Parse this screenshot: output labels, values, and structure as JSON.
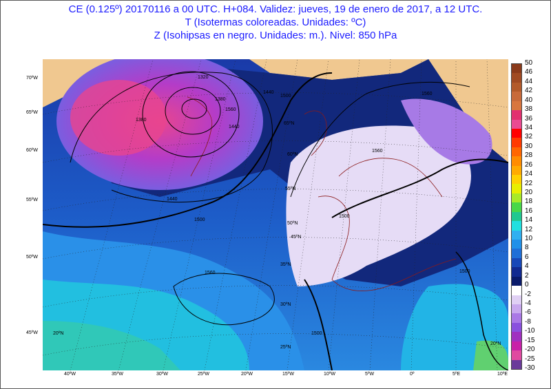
{
  "title": {
    "line1": "CE (0.125º) 20170116 a 00 UTC.  H+084. Validez: jueves, 19 de enero de 2017,  a  12 UTC.",
    "line2": "T (Isotermas coloreadas. Unidades: ºC)",
    "line3": "Z (Isohipsas en negro. Unidades: m.).   Nivel: 850 hPa"
  },
  "colorbar": {
    "labels": [
      "50",
      "46",
      "44",
      "42",
      "40",
      "38",
      "36",
      "34",
      "32",
      "30",
      "28",
      "26",
      "24",
      "22",
      "20",
      "18",
      "16",
      "14",
      "12",
      "10",
      "8",
      "6",
      "4",
      "2",
      "0",
      "-2",
      "-4",
      "-6",
      "-8",
      "-10",
      "-15",
      "-20",
      "-25",
      "-30"
    ],
    "colors": [
      "#8a3a1a",
      "#a04a22",
      "#b35a2a",
      "#c86a3a",
      "#d8763f",
      "#e2306f",
      "#ea4a92",
      "#ff0000",
      "#ff3a00",
      "#ff6600",
      "#ff8c00",
      "#ffaa00",
      "#ffd000",
      "#e8ee00",
      "#a8ea28",
      "#48d848",
      "#20c890",
      "#20e0e0",
      "#30b0f0",
      "#2090e8",
      "#1f6fd8",
      "#1848b8",
      "#122a90",
      "#0a1a6a",
      "#ffffff",
      "#e0d0f4",
      "#c8a8ee",
      "#aa78e6",
      "#8a50de",
      "#a030c0",
      "#c820a8",
      "#e04aa0",
      "#6a3a9a"
    ]
  },
  "longitude_labels": [
    "40ºW",
    "35ºW",
    "30ºW",
    "25ºW",
    "20ºW",
    "15ºW",
    "10ºW",
    "5ºW",
    "0º",
    "5ºE",
    "10ºE"
  ],
  "latitude_labels_left": [
    "70ºW",
    "65ºW",
    "60ºW",
    "55ºW",
    "50ºW",
    "45ºW"
  ],
  "inner_latitude_labels": [
    "65ºN",
    "60ºN",
    "55ºN",
    "50ºN",
    "45ºN",
    "35ºN",
    "30ºN",
    "25ºN",
    "20ºN",
    "20ºN"
  ],
  "contour_labels": [
    "1320",
    "1380",
    "1440",
    "1500",
    "1560",
    "1560",
    "1560",
    "1500",
    "1500",
    "1500",
    "1440",
    "1560",
    "1500",
    "1440",
    "1380"
  ]
}
